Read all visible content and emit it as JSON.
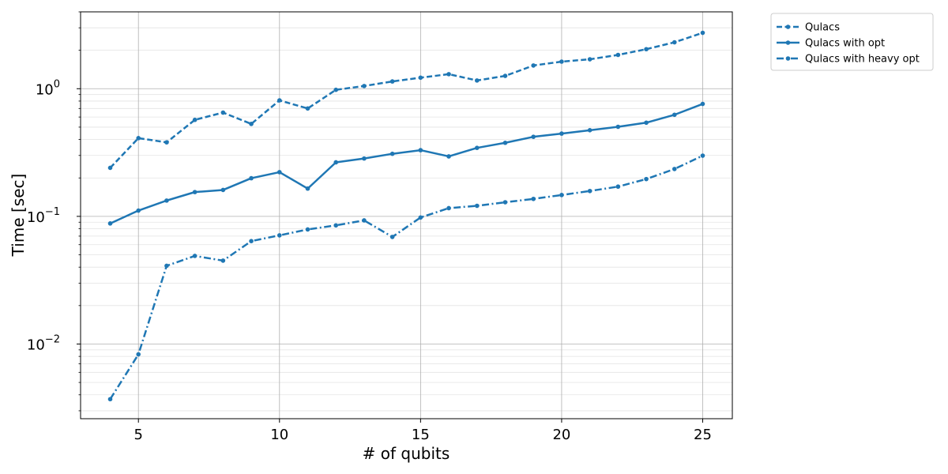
{
  "chart_data": {
    "type": "line",
    "title": "",
    "xlabel": "# of qubits",
    "ylabel": "Time [sec]",
    "yscale": "log",
    "xlim": [
      2.95,
      26.05
    ],
    "ylim": [
      0.0026,
      4.0
    ],
    "x_ticks": [
      5,
      10,
      15,
      20,
      25
    ],
    "y_ticks": [
      {
        "value": 0.01,
        "base": "10",
        "exp": "−2"
      },
      {
        "value": 0.1,
        "base": "10",
        "exp": "−1"
      },
      {
        "value": 1,
        "base": "10",
        "exp": "0"
      }
    ],
    "grid": true,
    "legend_position": "outside top-right",
    "color": "#1f77b4",
    "x": [
      4,
      5,
      6,
      7,
      8,
      9,
      10,
      11,
      12,
      13,
      14,
      15,
      16,
      17,
      18,
      19,
      20,
      21,
      22,
      23,
      24,
      25
    ],
    "series": [
      {
        "name": "Qulacs",
        "dash": "dashed",
        "values": [
          0.24,
          0.41,
          0.38,
          0.57,
          0.65,
          0.53,
          0.81,
          0.7,
          0.98,
          1.05,
          1.14,
          1.22,
          1.3,
          1.16,
          1.26,
          1.52,
          1.63,
          1.7,
          1.84,
          2.04,
          2.31,
          2.74
        ]
      },
      {
        "name": "Qulacs with opt",
        "dash": "solid",
        "values": [
          0.088,
          0.111,
          0.133,
          0.155,
          0.161,
          0.199,
          0.222,
          0.165,
          0.265,
          0.284,
          0.309,
          0.33,
          0.295,
          0.344,
          0.377,
          0.42,
          0.445,
          0.473,
          0.503,
          0.542,
          0.625,
          0.76
        ]
      },
      {
        "name": "Qulacs with heavy opt",
        "dash": "dashdot",
        "values": [
          0.0037,
          0.0083,
          0.041,
          0.049,
          0.045,
          0.064,
          0.071,
          0.079,
          0.085,
          0.093,
          0.069,
          0.098,
          0.116,
          0.121,
          0.129,
          0.137,
          0.147,
          0.158,
          0.171,
          0.196,
          0.235,
          0.299
        ]
      }
    ]
  }
}
